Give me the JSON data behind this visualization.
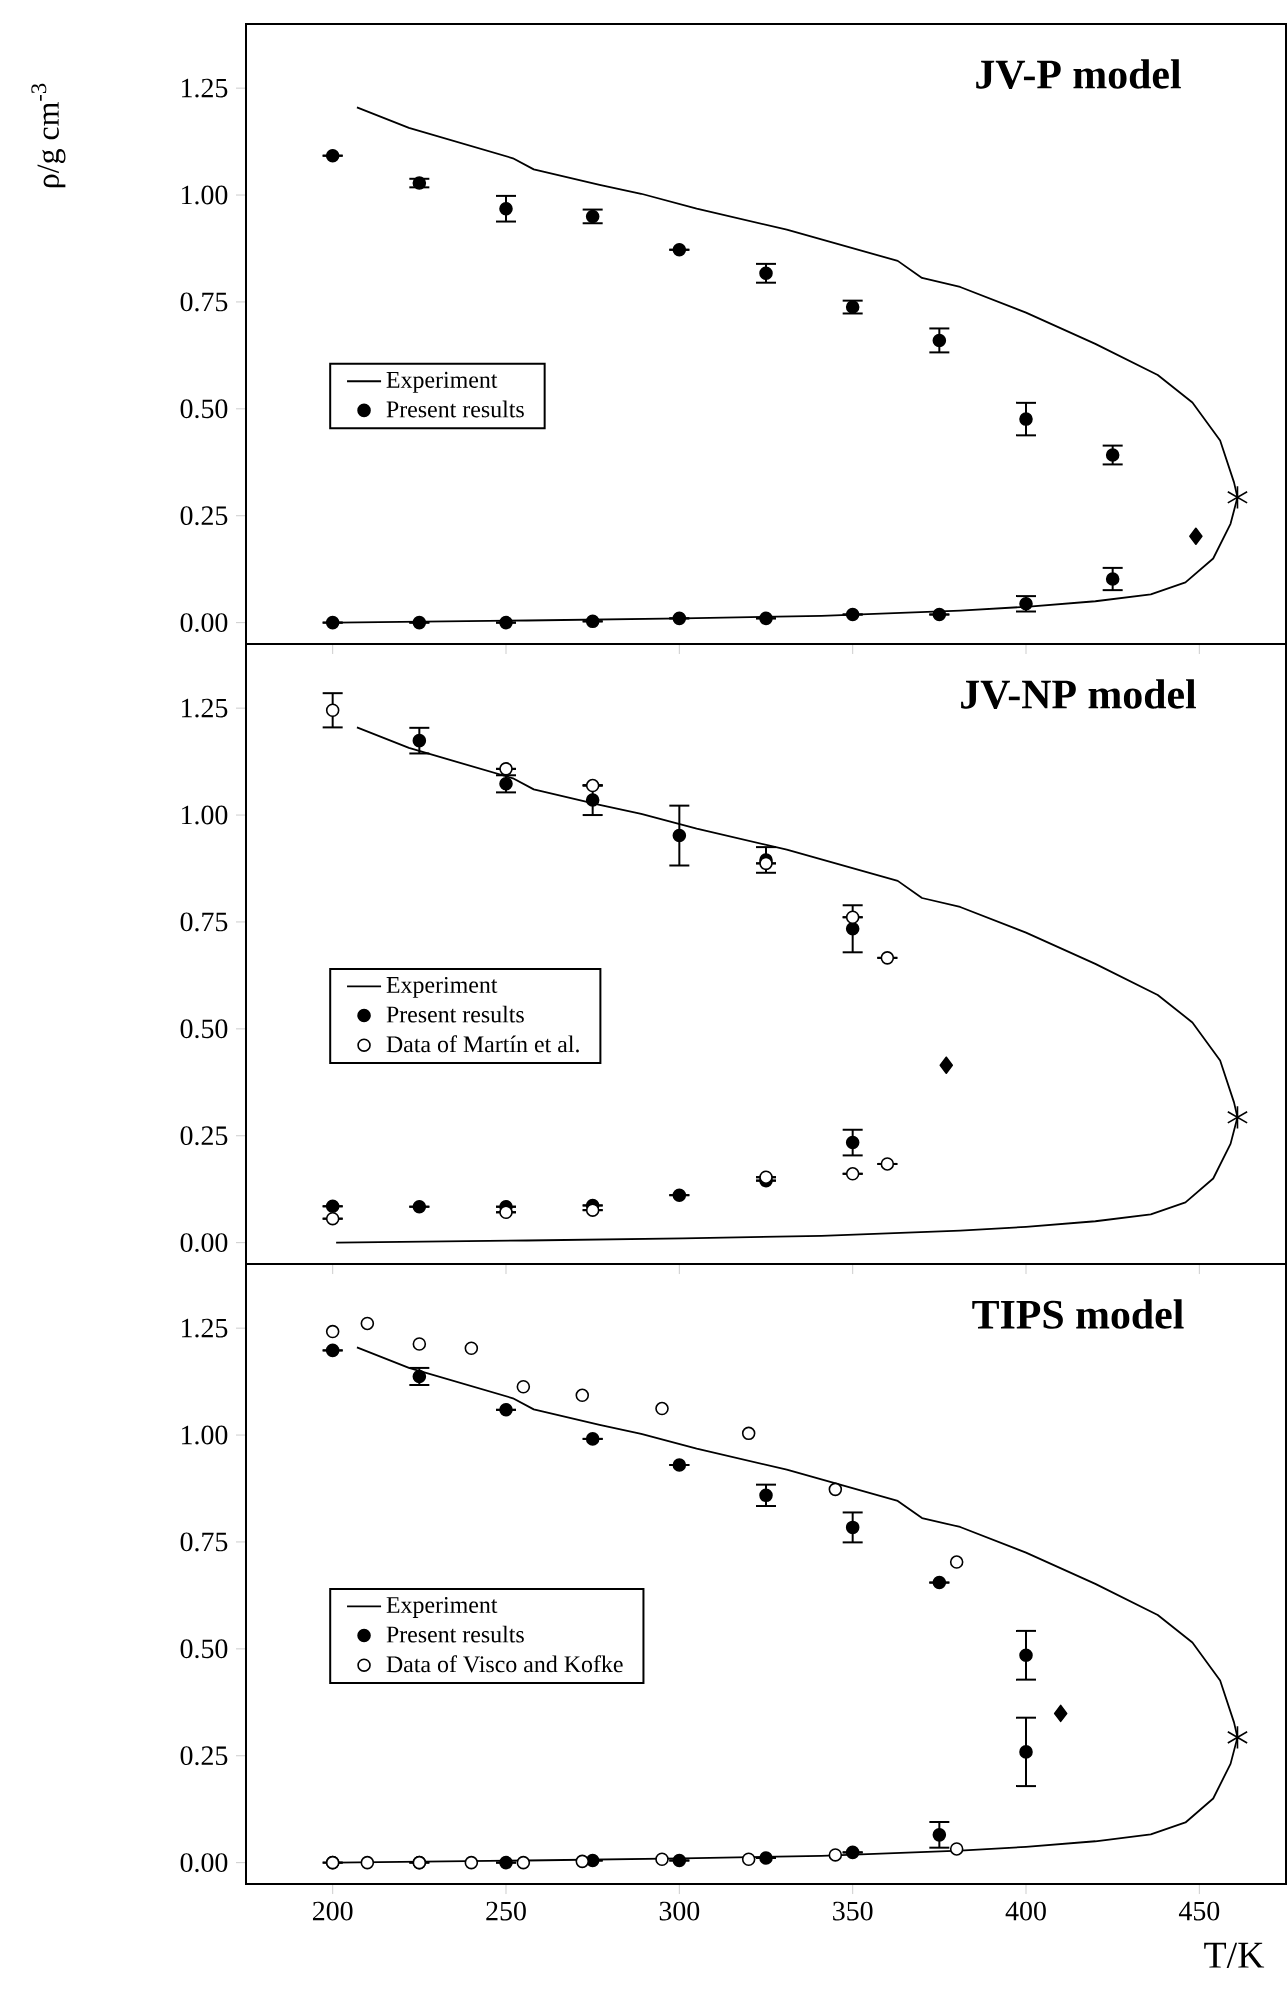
{
  "chart_data": [
    {
      "type": "scatter",
      "title": "JV-P model",
      "ylabel": "ρ/g cm$^{-3}$",
      "xlim": [
        175,
        475
      ],
      "ylim": [
        -0.05,
        1.4
      ],
      "xticks": [
        200,
        250,
        300,
        350,
        400,
        450
      ],
      "yticks": [
        {
          "value": 0,
          "label": "0.00"
        },
        {
          "value": 0.25,
          "label": "0.25"
        },
        {
          "value": 0.5,
          "label": "0.50"
        },
        {
          "value": 0.75,
          "label": "0.75"
        },
        {
          "value": 1.0,
          "label": "1.00"
        },
        {
          "value": 1.25,
          "label": "1.25"
        }
      ],
      "tick_labels": "y",
      "legend": "left",
      "series": [
        {
          "name": "Experiment",
          "type": "line",
          "color": "#000000",
          "marker": "none",
          "x": [
            207,
            222,
            252,
            258,
            277,
            289,
            305,
            331,
            363,
            370,
            381,
            400,
            420,
            438,
            448,
            456,
            460,
            461,
            459,
            454,
            446,
            436,
            420,
            400,
            381,
            341,
            301,
            256,
            201
          ],
          "values": [
            1.205,
            1.157,
            1.086,
            1.06,
            1.024,
            1.003,
            0.968,
            0.919,
            0.846,
            0.806,
            0.785,
            0.725,
            0.652,
            0.579,
            0.515,
            0.426,
            0.328,
            0.293,
            0.231,
            0.15,
            0.094,
            0.066,
            0.05,
            0.037,
            0.028,
            0.016,
            0.01,
            0.005,
            0.0
          ]
        },
        {
          "name": "Present results",
          "color": "#000000",
          "marker": "circle",
          "x": [
            200,
            225,
            250,
            275,
            300,
            325,
            350,
            375,
            400,
            425,
            200,
            225,
            250,
            275,
            300,
            325,
            350,
            375,
            400,
            425
          ],
          "values": [
            1.092,
            1.028,
            0.968,
            0.95,
            0.872,
            0.817,
            0.738,
            0.66,
            0.476,
            0.392,
            0.0,
            0.0,
            0.0,
            0.003,
            0.01,
            0.01,
            0.019,
            0.019,
            0.044,
            0.102
          ],
          "errors": [
            null,
            0.01,
            0.03,
            0.016,
            null,
            0.022,
            0.015,
            0.028,
            0.038,
            0.022,
            null,
            null,
            null,
            null,
            null,
            null,
            null,
            null,
            0.018,
            0.026
          ]
        },
        {
          "color": "#000000",
          "marker": "diamond",
          "x": [
            449
          ],
          "values": [
            0.202
          ]
        },
        {
          "color": "#000000",
          "marker": "cross",
          "x": [
            461
          ],
          "values": [
            0.293
          ]
        }
      ]
    },
    {
      "type": "scatter",
      "title": "JV-NP model",
      "xlim": [
        175,
        475
      ],
      "ylim": [
        -0.05,
        1.4
      ],
      "xticks": [
        200,
        250,
        300,
        350,
        400,
        450
      ],
      "yticks": [
        {
          "value": 0,
          "label": "0.00"
        },
        {
          "value": 0.25,
          "label": "0.25"
        },
        {
          "value": 0.5,
          "label": "0.50"
        },
        {
          "value": 0.75,
          "label": "0.75"
        },
        {
          "value": 1.0,
          "label": "1.00"
        },
        {
          "value": 1.25,
          "label": "1.25"
        }
      ],
      "tick_labels": "y",
      "legend": "left",
      "series": [
        {
          "name": "Experiment",
          "type": "line",
          "color": "#000000",
          "marker": "none",
          "x": [
            207,
            222,
            252,
            258,
            277,
            289,
            305,
            331,
            363,
            370,
            381,
            400,
            420,
            438,
            448,
            456,
            460,
            461,
            459,
            454,
            446,
            436,
            420,
            400,
            381,
            341,
            301,
            256,
            201
          ],
          "values": [
            1.205,
            1.157,
            1.086,
            1.06,
            1.024,
            1.003,
            0.968,
            0.919,
            0.846,
            0.806,
            0.785,
            0.725,
            0.652,
            0.579,
            0.515,
            0.426,
            0.328,
            0.293,
            0.231,
            0.15,
            0.094,
            0.066,
            0.05,
            0.037,
            0.028,
            0.016,
            0.01,
            0.005,
            0.0
          ]
        },
        {
          "name": "Present results",
          "color": "#000000",
          "marker": "circle",
          "x": [
            225,
            250,
            275,
            300,
            325,
            350,
            200,
            225,
            250,
            275,
            300,
            325,
            350
          ],
          "values": [
            1.174,
            1.073,
            1.035,
            0.952,
            0.895,
            0.734,
            0.085,
            0.084,
            0.084,
            0.087,
            0.111,
            0.145,
            0.234
          ],
          "errors": [
            0.03,
            0.02,
            0.035,
            0.07,
            0.03,
            0.055,
            null,
            null,
            null,
            null,
            null,
            null,
            0.03
          ]
        },
        {
          "name": "Data of Martín et al.",
          "color": "#ffffff",
          "marker": "circle",
          "x": [
            200,
            250,
            275,
            325,
            350,
            360,
            200,
            250,
            275,
            325,
            350,
            360
          ],
          "values": [
            1.245,
            1.108,
            1.069,
            0.887,
            0.761,
            0.666,
            0.056,
            0.071,
            0.076,
            0.153,
            0.161,
            0.184
          ],
          "errors": [
            0.04,
            null,
            null,
            null,
            null,
            null,
            null,
            null,
            null,
            null,
            null,
            null
          ]
        },
        {
          "color": "#000000",
          "marker": "diamond",
          "x": [
            377
          ],
          "values": [
            0.415
          ]
        },
        {
          "color": "#000000",
          "marker": "cross",
          "x": [
            461
          ],
          "values": [
            0.293
          ]
        }
      ]
    },
    {
      "type": "scatter",
      "title": "TIPS model",
      "xlabel": "T/K",
      "xlim": [
        175,
        475
      ],
      "ylim": [
        -0.05,
        1.4
      ],
      "xticks": [
        200,
        250,
        300,
        350,
        400,
        450
      ],
      "yticks": [
        {
          "value": 0,
          "label": "0.00"
        },
        {
          "value": 0.25,
          "label": "0.25"
        },
        {
          "value": 0.5,
          "label": "0.50"
        },
        {
          "value": 0.75,
          "label": "0.75"
        },
        {
          "value": 1.0,
          "label": "1.00"
        },
        {
          "value": 1.25,
          "label": "1.25"
        }
      ],
      "legend": "left",
      "series": [
        {
          "name": "Experiment",
          "type": "line",
          "color": "#000000",
          "marker": "none",
          "x": [
            207,
            222,
            252,
            258,
            277,
            289,
            305,
            331,
            363,
            370,
            381,
            400,
            420,
            438,
            448,
            456,
            460,
            461,
            459,
            454,
            446,
            436,
            420,
            400,
            381,
            341,
            301,
            256,
            201
          ],
          "values": [
            1.205,
            1.157,
            1.086,
            1.06,
            1.024,
            1.003,
            0.968,
            0.919,
            0.846,
            0.806,
            0.785,
            0.725,
            0.652,
            0.579,
            0.515,
            0.426,
            0.328,
            0.293,
            0.231,
            0.15,
            0.094,
            0.066,
            0.05,
            0.037,
            0.028,
            0.016,
            0.01,
            0.005,
            0.0
          ]
        },
        {
          "name": "Present results",
          "color": "#000000",
          "marker": "circle",
          "x": [
            200,
            225,
            250,
            275,
            300,
            325,
            350,
            375,
            400,
            400,
            375,
            200,
            225,
            250,
            275,
            300,
            325,
            350
          ],
          "values": [
            1.198,
            1.137,
            1.059,
            0.991,
            0.93,
            0.859,
            0.784,
            0.655,
            0.485,
            0.259,
            0.065,
            0.0,
            0.0,
            0.0,
            0.005,
            0.005,
            0.011,
            0.024
          ],
          "errors": [
            null,
            0.02,
            null,
            null,
            null,
            0.025,
            0.035,
            null,
            0.057,
            0.08,
            0.03,
            null,
            null,
            null,
            null,
            null,
            null,
            null
          ]
        },
        {
          "name": "Data of Visco and Kofke",
          "color": "#ffffff",
          "marker": "circle",
          "x": [
            200,
            210,
            225,
            240,
            255,
            272,
            295,
            320,
            345,
            380,
            200,
            210,
            225,
            240,
            255,
            272,
            295,
            320,
            345,
            380
          ],
          "values": [
            1.242,
            1.261,
            1.213,
            1.203,
            1.113,
            1.093,
            1.062,
            1.004,
            0.873,
            0.703,
            0.0,
            0.0,
            0.0,
            0.0,
            0.0,
            0.003,
            0.008,
            0.008,
            0.018,
            0.032
          ]
        },
        {
          "color": "#000000",
          "marker": "diamond",
          "x": [
            410
          ],
          "values": [
            0.349
          ]
        },
        {
          "color": "#000000",
          "marker": "cross",
          "x": [
            461
          ],
          "values": [
            0.293
          ]
        }
      ]
    }
  ]
}
